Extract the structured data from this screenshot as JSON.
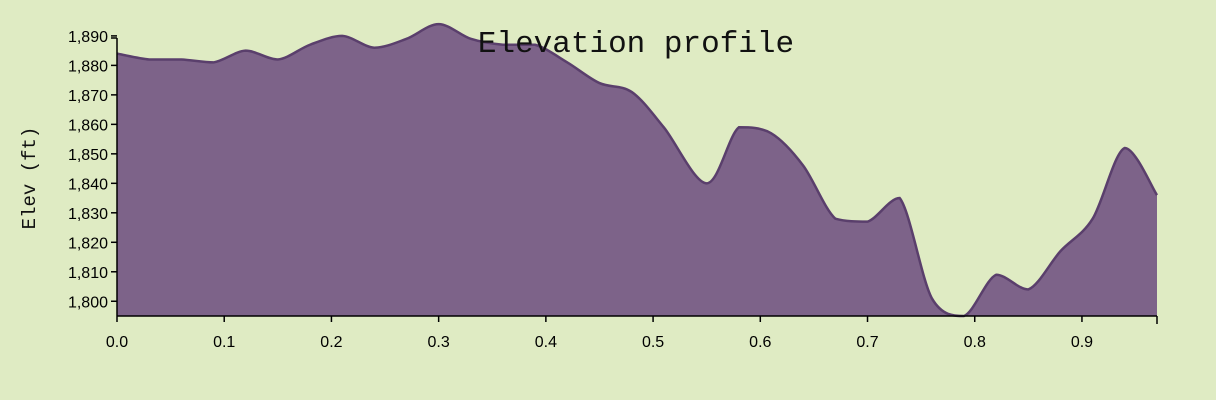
{
  "chart_data": {
    "type": "area",
    "title": "Elevation profile",
    "xlabel": "",
    "ylabel": "Elev (ft)",
    "xlim": [
      0,
      0.97
    ],
    "ylim": [
      1795,
      1892
    ],
    "grid": false,
    "x_ticks": [
      "0.0",
      "0.1",
      "0.2",
      "0.3",
      "0.4",
      "0.5",
      "0.6",
      "0.7",
      "0.8",
      "0.9"
    ],
    "y_ticks": [
      "1,800",
      "1,810",
      "1,820",
      "1,830",
      "1,840",
      "1,850",
      "1,860",
      "1,870",
      "1,880",
      "1,890"
    ],
    "colors": {
      "fill": "#7d6389",
      "stroke": "#5a3f6c",
      "background": "#dfebc3"
    },
    "series": [
      {
        "x": [
          0.0,
          0.03,
          0.06,
          0.09,
          0.12,
          0.15,
          0.18,
          0.21,
          0.24,
          0.27,
          0.3,
          0.33,
          0.36,
          0.39,
          0.42,
          0.45,
          0.48,
          0.51,
          0.55,
          0.58,
          0.61,
          0.64,
          0.67,
          0.7,
          0.73,
          0.76,
          0.79,
          0.82,
          0.85,
          0.88,
          0.91,
          0.94,
          0.97
        ],
        "values": [
          1884,
          1882,
          1882,
          1881,
          1885,
          1882,
          1887,
          1890,
          1886,
          1889,
          1894,
          1889,
          1887,
          1887,
          1881,
          1874,
          1871,
          1859,
          1840,
          1859,
          1857,
          1846,
          1828,
          1827,
          1835,
          1801,
          1795,
          1809,
          1804,
          1817,
          1828,
          1852,
          1836
        ]
      }
    ]
  }
}
